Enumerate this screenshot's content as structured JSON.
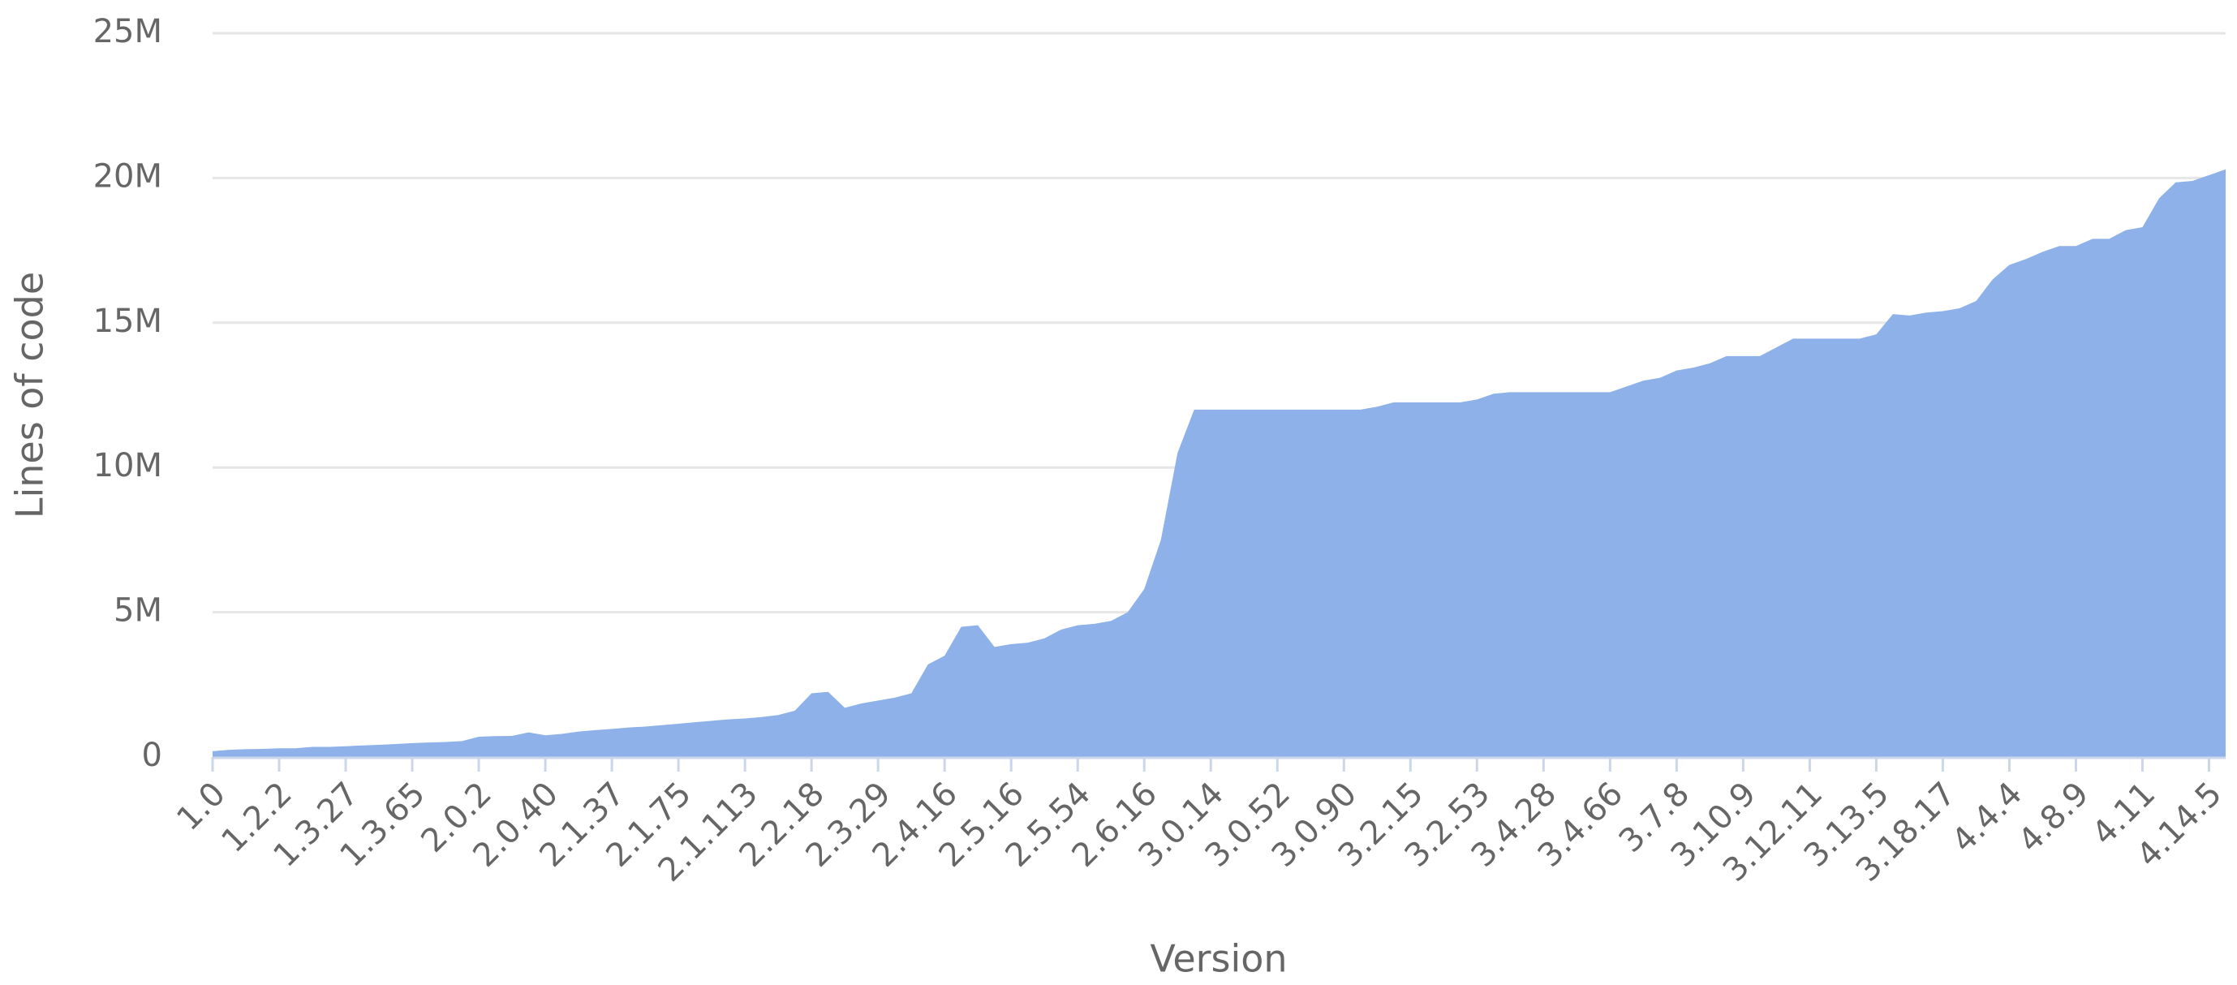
{
  "chart_data": {
    "type": "area",
    "xlabel": "Version",
    "ylabel": "Lines of code",
    "categories": [
      "1.0",
      null,
      null,
      null,
      "1.2.2",
      null,
      null,
      null,
      "1.3.27",
      null,
      null,
      null,
      "1.3.65",
      null,
      null,
      null,
      "2.0.2",
      null,
      null,
      null,
      "2.0.40",
      null,
      null,
      null,
      "2.1.37",
      null,
      null,
      null,
      "2.1.75",
      null,
      null,
      null,
      "2.1.113",
      null,
      null,
      null,
      "2.2.18",
      null,
      null,
      null,
      "2.3.29",
      null,
      null,
      null,
      "2.4.16",
      null,
      null,
      null,
      "2.5.16",
      null,
      null,
      null,
      "2.5.54",
      null,
      null,
      null,
      "2.6.16",
      null,
      null,
      null,
      "3.0.14",
      null,
      null,
      null,
      "3.0.52",
      null,
      null,
      null,
      "3.0.90",
      null,
      null,
      null,
      "3.2.15",
      null,
      null,
      null,
      "3.2.53",
      null,
      null,
      null,
      "3.4.28",
      null,
      null,
      null,
      "3.4.66",
      null,
      null,
      null,
      "3.7.8",
      null,
      null,
      null,
      "3.10.9",
      null,
      null,
      null,
      "3.12.11",
      null,
      null,
      null,
      "3.13.5",
      null,
      null,
      null,
      "3.18.17",
      null,
      null,
      null,
      "4.4.4",
      null,
      null,
      null,
      "4.8.9",
      null,
      null,
      null,
      "4.11",
      null,
      null,
      null,
      "4.14.5",
      null
    ],
    "values": [
      200000,
      250000,
      270000,
      280000,
      300000,
      300000,
      350000,
      350000,
      370000,
      400000,
      420000,
      450000,
      480000,
      500000,
      520000,
      550000,
      700000,
      720000,
      730000,
      850000,
      750000,
      800000,
      880000,
      930000,
      970000,
      1020000,
      1050000,
      1100000,
      1150000,
      1200000,
      1250000,
      1300000,
      1330000,
      1380000,
      1450000,
      1600000,
      2200000,
      2250000,
      1700000,
      1850000,
      1950000,
      2050000,
      2200000,
      3200000,
      3500000,
      4500000,
      4550000,
      3800000,
      3900000,
      3950000,
      4100000,
      4400000,
      4550000,
      4600000,
      4700000,
      5000000,
      5800000,
      7500000,
      10500000,
      12000000,
      12000000,
      12000000,
      12000000,
      12000000,
      12000000,
      12000000,
      12000000,
      12000000,
      12000000,
      12000000,
      12100000,
      12250000,
      12250000,
      12250000,
      12250000,
      12250000,
      12350000,
      12550000,
      12600000,
      12600000,
      12600000,
      12600000,
      12600000,
      12600000,
      12600000,
      12800000,
      13000000,
      13100000,
      13350000,
      13450000,
      13600000,
      13850000,
      13850000,
      13850000,
      14150000,
      14450000,
      14450000,
      14450000,
      14450000,
      14450000,
      14600000,
      15300000,
      15250000,
      15350000,
      15400000,
      15500000,
      15750000,
      16500000,
      17000000,
      17200000,
      17450000,
      17650000,
      17650000,
      17900000,
      17900000,
      18200000,
      18300000,
      19300000,
      19850000,
      19900000,
      20100000,
      20300000
    ],
    "color": "#8db1e8",
    "ylim": [
      0,
      25000000
    ],
    "yticks": [
      0,
      {
        "value": 5000000,
        "label": "5M"
      },
      {
        "value": 10000000,
        "label": "10M"
      },
      {
        "value": 15000000,
        "label": "15M"
      },
      {
        "value": 20000000,
        "label": "20M"
      },
      {
        "value": 25000000,
        "label": "25M"
      }
    ],
    "grid": true
  }
}
